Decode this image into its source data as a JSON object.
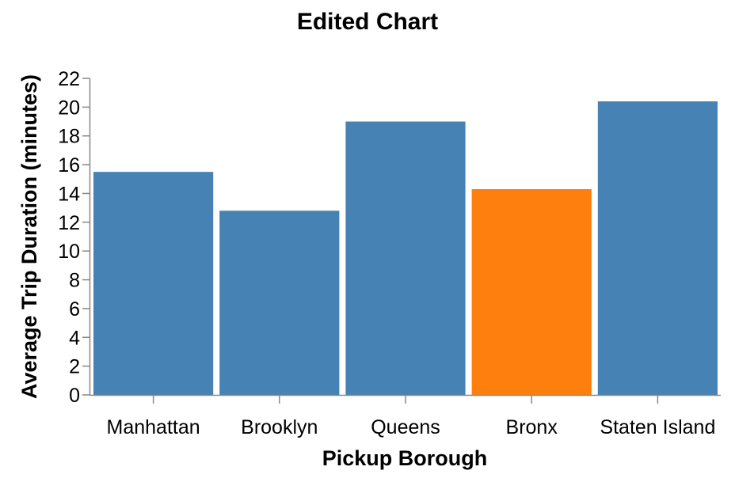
{
  "chart_data": {
    "type": "bar",
    "title": "Edited Chart",
    "xlabel": "Pickup Borough",
    "ylabel": "Average Trip Duration (minutes)",
    "categories": [
      "Manhattan",
      "Brooklyn",
      "Queens",
      "Bronx",
      "Staten Island"
    ],
    "values": [
      15.5,
      12.8,
      19.0,
      14.3,
      20.4
    ],
    "colors": [
      "#4682b4",
      "#4682b4",
      "#4682b4",
      "#ff7f0e",
      "#4682b4"
    ],
    "ylim": [
      0,
      22
    ],
    "yticks": [
      0,
      2,
      4,
      6,
      8,
      10,
      12,
      14,
      16,
      18,
      20,
      22
    ],
    "grid": false,
    "legend": "none"
  }
}
